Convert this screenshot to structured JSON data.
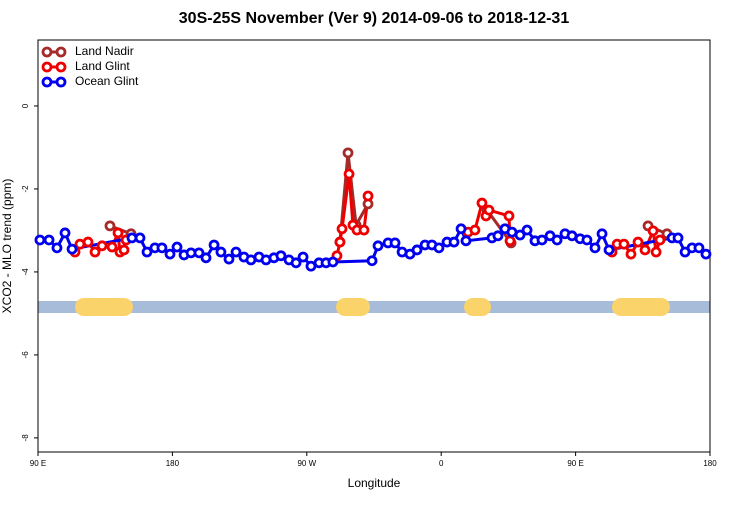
{
  "chart_data": {
    "type": "line",
    "title": "30S-25S November (Ver 9)   2014-09-06 to 2018-12-31",
    "x_label": "Longitude",
    "y_label": "XCO2 - MLO trend (ppm)",
    "xlim": [
      90,
      540
    ],
    "xticks": [
      {
        "value": 90,
        "label": "90 E"
      },
      180,
      {
        "value": 270,
        "label": "90 W"
      },
      {
        "value": 360,
        "label": "0"
      },
      {
        "value": 450,
        "label": "90 E"
      },
      {
        "value": 540,
        "label": "180"
      }
    ],
    "ylim": [
      -8.34,
      1.59
    ],
    "yticks": [
      0,
      -2,
      -4,
      -6,
      -8
    ],
    "legend": "top-left",
    "series": [
      {
        "name": "Land Nadir",
        "color": "#a52a2a",
        "x": [
          138.2,
          152.3,
          null,
          292.2,
          297.6,
          303,
          311,
          null,
          390.7,
          406.8,
          null,
          498.5,
          511.2
        ],
        "values": [
          -2.89,
          -3.08,
          null,
          -3.28,
          -1.13,
          -2.87,
          -2.36,
          null,
          -2.51,
          -3.3,
          null,
          -2.89,
          -3.08
        ]
      },
      {
        "name": "Land Glint",
        "color": "#ee0000",
        "x": [
          114.8,
          118.1,
          123.5,
          128.2,
          132.9,
          139.6,
          143.6,
          144.9,
          147.6,
          149,
          null,
          290.2,
          292.2,
          293.6,
          298.3,
          300.9,
          303.6,
          308.3,
          311,
          null,
          378,
          382.6,
          387.3,
          390,
          392,
          405.4,
          406.1,
          null,
          474.4,
          477.8,
          482.4,
          487.1,
          491.8,
          496.5,
          501.9,
          503.9,
          506.5
        ],
        "values": [
          -3.52,
          -3.33,
          -3.28,
          -3.52,
          -3.37,
          -3.4,
          -3.06,
          -3.52,
          -3.47,
          -3.23,
          null,
          -3.61,
          -3.28,
          -2.96,
          -1.64,
          -2.87,
          -2.99,
          -2.99,
          -2.17,
          null,
          -3.04,
          -2.99,
          -2.34,
          -2.65,
          -2.51,
          -2.65,
          -3.25,
          null,
          -3.52,
          -3.33,
          -3.33,
          -3.57,
          -3.28,
          -3.47,
          -3.01,
          -3.52,
          -3.23
        ]
      },
      {
        "name": "Ocean Glint",
        "color": "#0000ee",
        "x": [
          91.3,
          97.4,
          102.7,
          108.1,
          112.8,
          152.9,
          158.3,
          163,
          168.3,
          173,
          178.4,
          183.1,
          187.8,
          192.5,
          197.8,
          202.5,
          207.9,
          212.5,
          217.9,
          222.6,
          227.9,
          232.6,
          238,
          242.7,
          248,
          252.7,
          258.1,
          262.8,
          267.5,
          272.8,
          278.2,
          282.9,
          287.5,
          313.7,
          317.7,
          324.4,
          329.1,
          333.8,
          339.1,
          343.8,
          349.2,
          353.8,
          358.5,
          363.9,
          368.6,
          373.3,
          376.6,
          394,
          398,
          402.7,
          407.4,
          412.8,
          417.5,
          422.8,
          427.5,
          432.9,
          437.6,
          442.9,
          447.6,
          453,
          457.6,
          463,
          467.7,
          472.4,
          514.6,
          518.6,
          523.3,
          528,
          532.6,
          537.3
        ],
        "values": [
          -3.23,
          -3.23,
          -3.42,
          -3.06,
          -3.45,
          -3.18,
          -3.18,
          -3.52,
          -3.42,
          -3.42,
          -3.57,
          -3.4,
          -3.59,
          -3.54,
          -3.54,
          -3.66,
          -3.35,
          -3.52,
          -3.69,
          -3.52,
          -3.64,
          -3.71,
          -3.64,
          -3.71,
          -3.66,
          -3.61,
          -3.71,
          -3.78,
          -3.64,
          -3.86,
          -3.78,
          -3.78,
          -3.76,
          -3.73,
          -3.37,
          -3.3,
          -3.3,
          -3.52,
          -3.57,
          -3.47,
          -3.35,
          -3.35,
          -3.42,
          -3.28,
          -3.28,
          -2.96,
          -3.25,
          -3.18,
          -3.13,
          -2.96,
          -3.04,
          -3.11,
          -2.99,
          -3.25,
          -3.23,
          -3.13,
          -3.23,
          -3.08,
          -3.13,
          -3.2,
          -3.23,
          -3.42,
          -3.08,
          -3.47,
          -3.18,
          -3.18,
          -3.52,
          -3.42,
          -3.42,
          -3.57
        ]
      }
    ]
  }
}
